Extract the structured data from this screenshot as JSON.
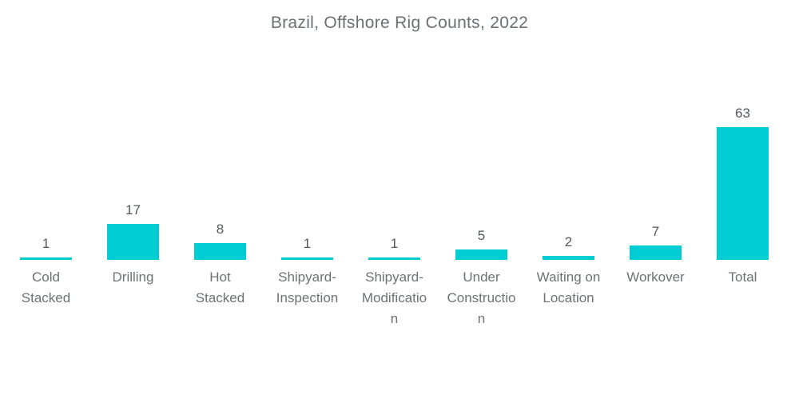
{
  "title": "Brazil, Offshore Rig Counts, 2022",
  "colors": {
    "background": "#ffffff",
    "bar": "#00ccd3",
    "title_text": "#6b7074",
    "value_text": "#53575a",
    "label_text": "#6e7276"
  },
  "chart_data": {
    "type": "bar",
    "title": "Brazil, Offshore Rig Counts, 2022",
    "categories": [
      "Cold Stacked",
      "Drilling",
      "Hot Stacked",
      "Shipyard-Inspection",
      "Shipyard-Modification",
      "Under Construction",
      "Waiting on Location",
      "Workover",
      "Total"
    ],
    "values": [
      1,
      17,
      8,
      1,
      1,
      5,
      2,
      7,
      63
    ],
    "xlabel": "",
    "ylabel": "",
    "ylim": [
      0,
      63
    ],
    "grid": false,
    "legend": "none",
    "axes_visible": false,
    "data_labels": "above-bars",
    "bar_color": "#00ccd3"
  }
}
